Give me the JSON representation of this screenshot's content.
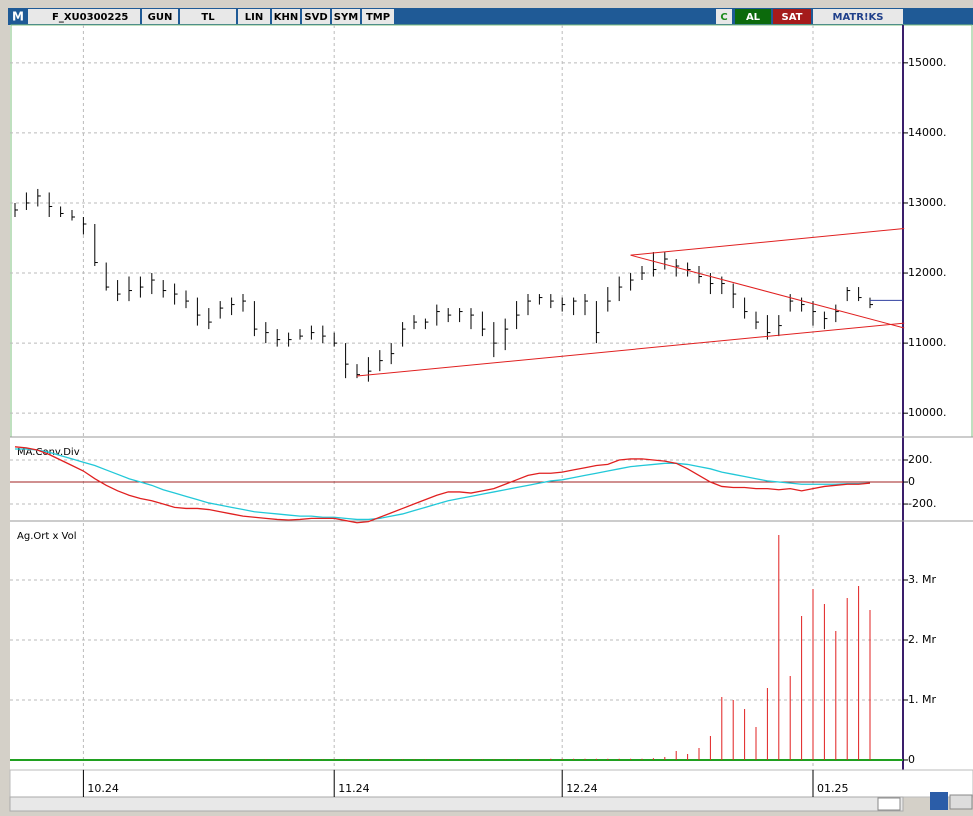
{
  "toolbar": {
    "logo": "M",
    "symbol": "F_XU0300225",
    "buttons": [
      "GUN",
      "TL",
      "LIN",
      "KHN",
      "SVD",
      "SYM",
      "TMP"
    ],
    "right_buttons": [
      "C",
      "AL",
      "SAT",
      "MATR!KS"
    ]
  },
  "price_panel": {
    "ylim": [
      9660,
      15540
    ],
    "yticks": [
      {
        "value": 10000,
        "label": "10000."
      },
      {
        "value": 11000,
        "label": "11000."
      },
      {
        "value": 12000,
        "label": "12000."
      },
      {
        "value": 13000,
        "label": "13000."
      },
      {
        "value": 14000,
        "label": "14000."
      },
      {
        "value": 15000,
        "label": "15000."
      }
    ],
    "high": [
      13000,
      13150,
      13200,
      13150,
      12950,
      12900,
      12800,
      12700,
      12150,
      11900,
      11950,
      11950,
      12000,
      11900,
      11850,
      11750,
      11650,
      11500,
      11600,
      11650,
      11700,
      11600,
      11300,
      11200,
      11150,
      11200,
      11250,
      11250,
      11150,
      11000,
      10700,
      10800,
      10900,
      11000,
      11300,
      11400,
      11350,
      11550,
      11500,
      11500,
      11500,
      11450,
      11300,
      11350,
      11600,
      11700,
      11700,
      11700,
      11650,
      11650,
      11700,
      11600,
      11800,
      11950,
      12000,
      12100,
      12300,
      12300,
      12200,
      12150,
      12100,
      12000,
      11950,
      11850,
      11650,
      11450,
      11400,
      11400,
      11700,
      11650,
      11600,
      11450,
      11550,
      11800,
      11800,
      11650
    ],
    "low": [
      12800,
      12900,
      12950,
      12800,
      12800,
      12750,
      12550,
      12100,
      11750,
      11600,
      11600,
      11650,
      11700,
      11650,
      11550,
      11500,
      11250,
      11200,
      11350,
      11400,
      11450,
      11100,
      11000,
      10950,
      10950,
      11050,
      11050,
      11000,
      10950,
      10500,
      10500,
      10450,
      10600,
      10700,
      10950,
      11200,
      11200,
      11250,
      11300,
      11300,
      11200,
      11100,
      10800,
      10900,
      11200,
      11400,
      11550,
      11500,
      11450,
      11400,
      11400,
      11000,
      11450,
      11600,
      11750,
      11900,
      11950,
      12050,
      11950,
      11950,
      11850,
      11700,
      11700,
      11500,
      11350,
      11200,
      11050,
      11100,
      11450,
      11450,
      11250,
      11200,
      11300,
      11600,
      11600,
      11500
    ],
    "close": [
      12900,
      13000,
      13100,
      12950,
      12850,
      12800,
      12700,
      12150,
      11800,
      11700,
      11750,
      11800,
      11900,
      11750,
      11700,
      11600,
      11400,
      11300,
      11500,
      11550,
      11600,
      11200,
      11150,
      11050,
      11050,
      11100,
      11150,
      11100,
      11000,
      10700,
      10550,
      10600,
      10750,
      10850,
      11200,
      11300,
      11300,
      11450,
      11400,
      11450,
      11400,
      11200,
      11000,
      11200,
      11400,
      11600,
      11650,
      11600,
      11550,
      11600,
      11600,
      11150,
      11600,
      11800,
      11900,
      12000,
      12050,
      12200,
      12100,
      12050,
      11950,
      11850,
      11850,
      11700,
      11450,
      11300,
      11150,
      11250,
      11600,
      11550,
      11450,
      11350,
      11450,
      11750,
      11650,
      11550
    ],
    "last_price": 11610,
    "trend_lines": [
      {
        "x": [
          30,
          78
        ],
        "y": [
          10530,
          11285
        ]
      },
      {
        "x": [
          54,
          78
        ],
        "y": [
          12255,
          12635
        ]
      },
      {
        "x": [
          54,
          78
        ],
        "y": [
          12255,
          11215
        ]
      }
    ]
  },
  "macd_panel": {
    "label": "MA.Conv.Div",
    "ylim": [
      -345,
      400
    ],
    "yticks": [
      {
        "value": -200,
        "label": "-200."
      },
      0,
      {
        "value": 200,
        "label": "200."
      }
    ],
    "macd": [
      320,
      310,
      290,
      250,
      200,
      150,
      100,
      30,
      -30,
      -80,
      -120,
      -150,
      -170,
      -200,
      -230,
      -240,
      -240,
      -250,
      -270,
      -290,
      -310,
      -320,
      -330,
      -340,
      -345,
      -340,
      -330,
      -330,
      -330,
      -350,
      -370,
      -360,
      -320,
      -280,
      -240,
      -200,
      -160,
      -120,
      -90,
      -90,
      -100,
      -80,
      -60,
      -20,
      20,
      60,
      80,
      80,
      90,
      110,
      130,
      150,
      160,
      200,
      210,
      210,
      200,
      190,
      170,
      120,
      60,
      0,
      -40,
      -50,
      -50,
      -60,
      -60,
      -70,
      -60,
      -80,
      -60,
      -40,
      -30,
      -20,
      -20,
      -10
    ],
    "signal": [
      300,
      300,
      290,
      270,
      240,
      210,
      180,
      150,
      110,
      70,
      30,
      0,
      -30,
      -70,
      -100,
      -130,
      -160,
      -190,
      -210,
      -230,
      -250,
      -270,
      -280,
      -290,
      -300,
      -310,
      -310,
      -320,
      -320,
      -330,
      -340,
      -340,
      -330,
      -310,
      -290,
      -260,
      -230,
      -200,
      -170,
      -150,
      -130,
      -110,
      -90,
      -70,
      -50,
      -30,
      -10,
      10,
      20,
      40,
      60,
      80,
      100,
      120,
      140,
      150,
      160,
      170,
      170,
      160,
      140,
      120,
      90,
      70,
      50,
      30,
      10,
      0,
      -10,
      -20,
      -20,
      -20,
      -20,
      -15,
      -15,
      -10
    ]
  },
  "volume_panel": {
    "label": "Ag.Ort x Vol",
    "ylim": [
      -0.167,
      3.95
    ],
    "yticks": [
      0,
      {
        "value": 1,
        "label": "1. Mr"
      },
      {
        "value": 2,
        "label": "2. Mr"
      },
      {
        "value": 3,
        "label": "3. Mr"
      }
    ],
    "values": [
      0,
      0,
      0,
      0,
      0,
      0,
      0,
      0,
      0,
      0,
      0,
      0,
      0,
      0,
      0,
      0,
      0,
      0,
      0,
      0,
      0,
      0,
      0.01,
      0.01,
      0.01,
      0.01,
      0.01,
      0.01,
      0.01,
      0.01,
      0.01,
      0.01,
      0.01,
      0.01,
      0.01,
      0.01,
      0.01,
      0.01,
      0.01,
      0.01,
      0.01,
      0.01,
      0.01,
      0.01,
      0.01,
      0.01,
      0.01,
      0.02,
      0.02,
      0.02,
      0.02,
      0.02,
      0.02,
      0.02,
      0.02,
      0.02,
      0.03,
      0.05,
      0.15,
      0.1,
      0.2,
      0.4,
      1.05,
      1.0,
      0.85,
      0.55,
      1.2,
      3.75,
      1.4,
      2.4,
      2.85,
      2.6,
      2.15,
      2.7,
      2.9,
      2.5
    ]
  },
  "dates": [
    null,
    null,
    null,
    null,
    null,
    null,
    "10.24",
    null,
    null,
    null,
    null,
    null,
    null,
    null,
    null,
    null,
    null,
    null,
    null,
    null,
    null,
    null,
    null,
    null,
    null,
    null,
    null,
    null,
    "11.24",
    null,
    null,
    null,
    null,
    null,
    null,
    null,
    null,
    null,
    null,
    null,
    null,
    null,
    null,
    null,
    null,
    null,
    null,
    null,
    "12.24",
    null,
    null,
    null,
    null,
    null,
    null,
    null,
    null,
    null,
    null,
    null,
    null,
    null,
    null,
    null,
    null,
    null,
    null,
    null,
    null,
    null,
    "01.25",
    null,
    null,
    null,
    null,
    null
  ]
}
